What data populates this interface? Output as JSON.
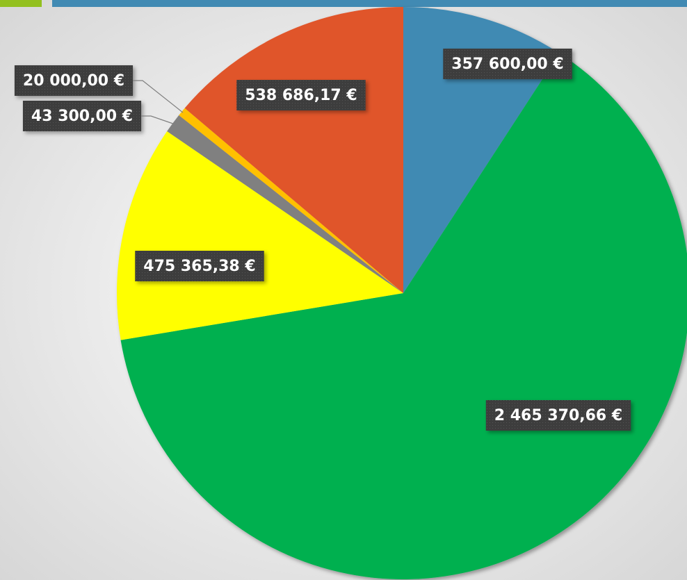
{
  "chart_data": {
    "type": "pie",
    "values": [
      357600,
      2465370.66,
      475365.38,
      43300,
      20000,
      538686.17
    ],
    "value_labels": [
      "357 600,00 €",
      "2 465 370,66 €",
      "475 365,38 €",
      "43 300,00 €",
      "20 000,00 €",
      "538 686,17 €"
    ],
    "colors": [
      "#418ab3",
      "#00b050",
      "#ffff00",
      "#808080",
      "#ffc000",
      "#e0542a"
    ]
  }
}
